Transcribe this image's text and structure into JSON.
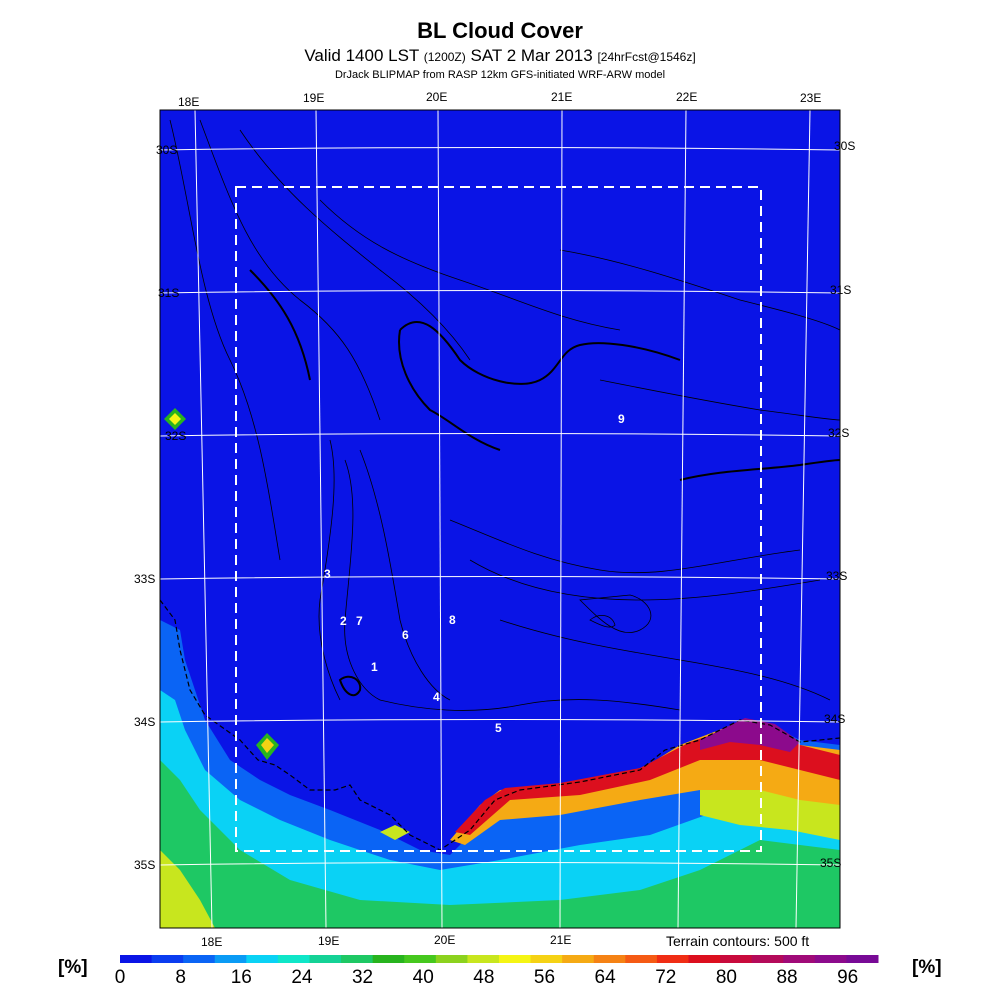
{
  "title": "BL Cloud Cover",
  "subtitle": {
    "pre": "Valid 1400 LST",
    "z": "(1200Z)",
    "date": "SAT 2 Mar 2013",
    "fcst": "[24hrFcst@1546z]"
  },
  "source": "DrJack BLIPMAP from RASP 12km GFS-initiated WRF-ARW model",
  "lon_labels": [
    "18E",
    "19E",
    "20E",
    "21E",
    "22E",
    "23E"
  ],
  "lat_labels": [
    "30S",
    "31S",
    "32S",
    "33S",
    "34S",
    "35S"
  ],
  "terrain_note": "Terrain contours: 500 ft",
  "unit_label": "[%]",
  "colorbar": {
    "ticks": [
      "0",
      "8",
      "16",
      "24",
      "32",
      "40",
      "48",
      "56",
      "64",
      "72",
      "80",
      "88",
      "96"
    ],
    "colors": [
      "#0a14e6",
      "#0a3cf0",
      "#0a64f5",
      "#0a9bf5",
      "#0ad2f5",
      "#0fe6c8",
      "#14d296",
      "#1ec864",
      "#28b41e",
      "#46c81e",
      "#8cd21e",
      "#c8e61e",
      "#f5f514",
      "#f5d214",
      "#f5aa14",
      "#f58214",
      "#f55a14",
      "#f02d14",
      "#dc0f1e",
      "#c80a3c",
      "#b40a5a",
      "#a00a78",
      "#8c0a8c",
      "#780a96"
    ]
  },
  "site_markers": [
    {
      "label": "9"
    },
    {
      "label": "3"
    },
    {
      "label": "2"
    },
    {
      "label": "7"
    },
    {
      "label": "8"
    },
    {
      "label": "6"
    },
    {
      "label": "1"
    },
    {
      "label": "4"
    },
    {
      "label": "5"
    }
  ]
}
